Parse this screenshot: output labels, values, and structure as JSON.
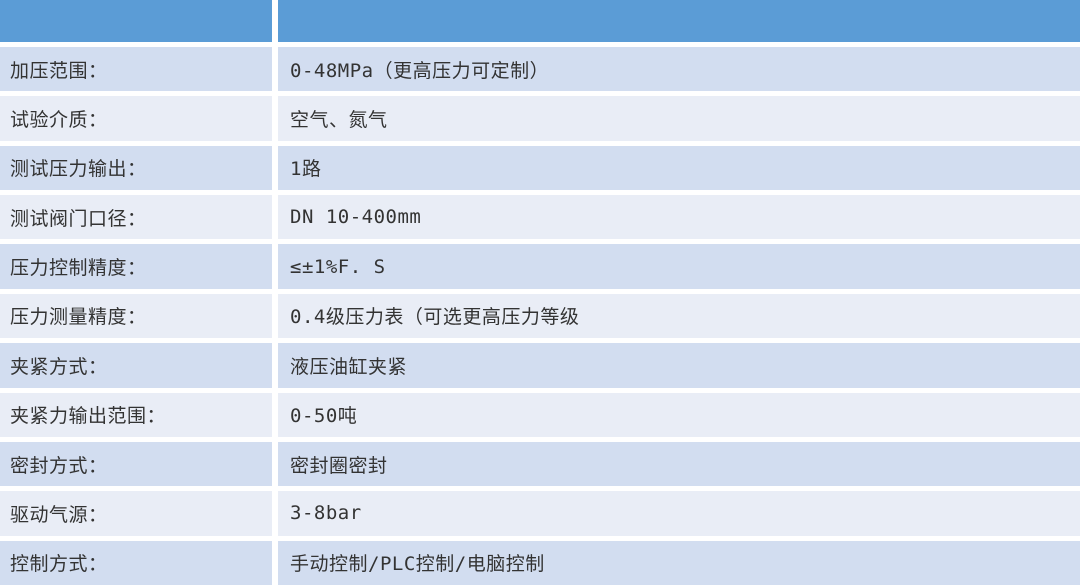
{
  "table": {
    "header": {
      "label": "",
      "value": ""
    },
    "rows": [
      {
        "label": "加压范围：",
        "value": "0-48MPa（更高压力可定制）"
      },
      {
        "label": "试验介质：",
        "value": "空气、氮气"
      },
      {
        "label": "测试压力输出：",
        "value": "1路"
      },
      {
        "label": "测试阀门口径：",
        "value": "DN 10-400mm"
      },
      {
        "label": "压力控制精度：",
        "value": "≤±1%F. S"
      },
      {
        "label": "压力测量精度：",
        "value": "0.4级压力表（可选更高压力等级"
      },
      {
        "label": "夹紧方式：",
        "value": "液压油缸夹紧"
      },
      {
        "label": "夹紧力输出范围：",
        "value": "0-50吨"
      },
      {
        "label": "密封方式：",
        "value": "密封圈密封"
      },
      {
        "label": "驱动气源：",
        "value": "3-8bar"
      },
      {
        "label": "控制方式：",
        "value": "手动控制/PLC控制/电脑控制"
      }
    ]
  },
  "colors": {
    "header_blue": "#5b9cd6",
    "row_stripe_dark": "#d2ddf0",
    "row_stripe_light": "#e9edf6",
    "divider_white": "#ffffff",
    "text": "#333333"
  }
}
